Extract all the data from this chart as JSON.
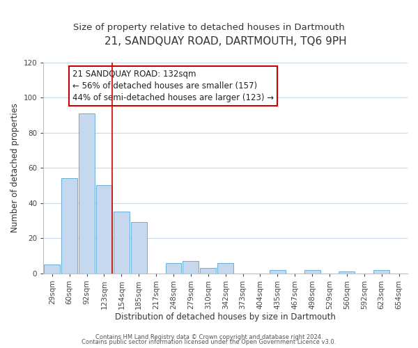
{
  "title": "21, SANDQUAY ROAD, DARTMOUTH, TQ6 9PH",
  "subtitle": "Size of property relative to detached houses in Dartmouth",
  "xlabel": "Distribution of detached houses by size in Dartmouth",
  "ylabel": "Number of detached properties",
  "bar_labels": [
    "29sqm",
    "60sqm",
    "92sqm",
    "123sqm",
    "154sqm",
    "185sqm",
    "217sqm",
    "248sqm",
    "279sqm",
    "310sqm",
    "342sqm",
    "373sqm",
    "404sqm",
    "435sqm",
    "467sqm",
    "498sqm",
    "529sqm",
    "560sqm",
    "592sqm",
    "623sqm",
    "654sqm"
  ],
  "bar_values": [
    5,
    54,
    91,
    50,
    35,
    29,
    0,
    6,
    7,
    3,
    6,
    0,
    0,
    2,
    0,
    2,
    0,
    1,
    0,
    2,
    0
  ],
  "bar_color": "#c5d8ed",
  "bar_edge_color": "#6aaed6",
  "vline_color": "#cc0000",
  "annotation_line1": "21 SANDQUAY ROAD: 132sqm",
  "annotation_line2": "← 56% of detached houses are smaller (157)",
  "annotation_line3": "44% of semi-detached houses are larger (123) →",
  "ylim": [
    0,
    120
  ],
  "yticks": [
    0,
    20,
    40,
    60,
    80,
    100,
    120
  ],
  "footer_line1": "Contains HM Land Registry data © Crown copyright and database right 2024.",
  "footer_line2": "Contains public sector information licensed under the Open Government Licence v3.0.",
  "title_fontsize": 11,
  "subtitle_fontsize": 9.5,
  "axis_label_fontsize": 8.5,
  "tick_fontsize": 7.5,
  "annotation_fontsize": 8.5,
  "footer_fontsize": 6,
  "background_color": "#ffffff",
  "grid_color": "#c8d8e8",
  "spine_color": "#c0c0c0"
}
